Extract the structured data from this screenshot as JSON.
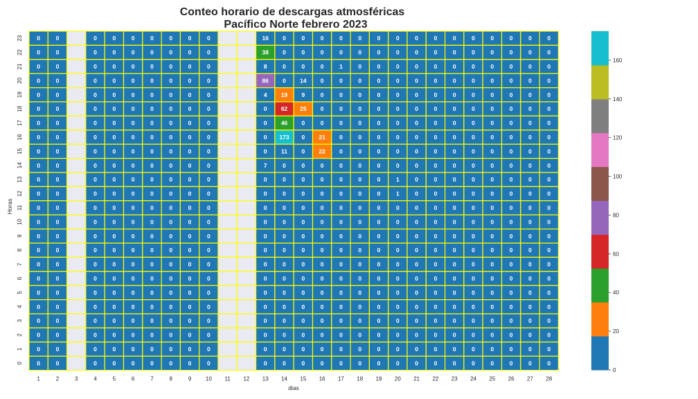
{
  "chart_data": {
    "type": "heatmap",
    "title": "Conteo horario de descargas atmosféricas",
    "subtitle": "Pacífico Norte febrero 2023",
    "xlabel": "dias",
    "ylabel": "Horas",
    "x": [
      1,
      2,
      3,
      4,
      5,
      6,
      7,
      8,
      9,
      10,
      11,
      12,
      13,
      14,
      15,
      16,
      17,
      18,
      19,
      20,
      21,
      22,
      23,
      24,
      25,
      26,
      27,
      28
    ],
    "y": [
      23,
      22,
      21,
      20,
      19,
      18,
      17,
      16,
      15,
      14,
      13,
      12,
      11,
      10,
      9,
      8,
      7,
      6,
      5,
      4,
      3,
      2,
      1,
      0
    ],
    "missing_days": [
      3,
      11,
      12
    ],
    "values": [
      [
        0,
        0,
        null,
        0,
        0,
        0,
        0,
        0,
        0,
        0,
        null,
        null,
        16,
        0,
        0,
        0,
        0,
        0,
        0,
        0,
        0,
        0,
        0,
        0,
        0,
        0,
        0,
        0
      ],
      [
        0,
        0,
        null,
        0,
        0,
        0,
        0,
        0,
        0,
        0,
        null,
        null,
        38,
        0,
        0,
        0,
        0,
        0,
        0,
        0,
        0,
        0,
        0,
        0,
        0,
        0,
        0,
        0
      ],
      [
        0,
        0,
        null,
        0,
        0,
        0,
        0,
        0,
        0,
        0,
        null,
        null,
        8,
        0,
        0,
        0,
        1,
        0,
        0,
        0,
        0,
        0,
        0,
        0,
        0,
        0,
        0,
        0
      ],
      [
        0,
        0,
        null,
        0,
        0,
        0,
        0,
        0,
        0,
        0,
        null,
        null,
        86,
        0,
        14,
        0,
        0,
        0,
        0,
        0,
        0,
        0,
        0,
        0,
        0,
        0,
        0,
        0
      ],
      [
        0,
        0,
        null,
        0,
        0,
        0,
        0,
        0,
        0,
        0,
        null,
        null,
        4,
        19,
        9,
        0,
        0,
        0,
        0,
        0,
        0,
        0,
        0,
        0,
        0,
        0,
        0,
        0
      ],
      [
        0,
        0,
        null,
        0,
        0,
        0,
        0,
        0,
        0,
        0,
        null,
        null,
        0,
        62,
        25,
        0,
        0,
        0,
        0,
        0,
        0,
        0,
        0,
        0,
        0,
        0,
        0,
        0
      ],
      [
        0,
        0,
        null,
        0,
        0,
        0,
        0,
        0,
        0,
        0,
        null,
        null,
        0,
        46,
        0,
        0,
        0,
        0,
        0,
        0,
        0,
        0,
        0,
        0,
        0,
        0,
        0,
        0
      ],
      [
        0,
        0,
        null,
        0,
        0,
        0,
        0,
        0,
        0,
        0,
        null,
        null,
        0,
        173,
        0,
        21,
        0,
        0,
        0,
        0,
        0,
        0,
        0,
        0,
        0,
        0,
        0,
        0
      ],
      [
        0,
        0,
        null,
        0,
        0,
        0,
        0,
        0,
        0,
        0,
        null,
        null,
        0,
        11,
        0,
        22,
        0,
        0,
        0,
        0,
        0,
        0,
        0,
        0,
        0,
        0,
        0,
        0
      ],
      [
        0,
        0,
        null,
        0,
        0,
        0,
        0,
        0,
        0,
        0,
        null,
        null,
        7,
        0,
        0,
        0,
        0,
        0,
        0,
        0,
        0,
        0,
        0,
        0,
        0,
        0,
        0,
        0
      ],
      [
        0,
        0,
        null,
        0,
        0,
        0,
        0,
        0,
        0,
        0,
        null,
        null,
        0,
        0,
        0,
        0,
        0,
        0,
        0,
        1,
        0,
        0,
        0,
        0,
        0,
        0,
        0,
        0
      ],
      [
        0,
        0,
        null,
        0,
        0,
        0,
        0,
        0,
        0,
        0,
        null,
        null,
        0,
        0,
        0,
        0,
        0,
        0,
        0,
        1,
        0,
        0,
        0,
        0,
        0,
        0,
        0,
        0
      ],
      [
        0,
        0,
        null,
        0,
        0,
        0,
        0,
        0,
        0,
        0,
        null,
        null,
        0,
        0,
        0,
        0,
        0,
        0,
        0,
        0,
        0,
        0,
        0,
        0,
        0,
        0,
        0,
        0
      ],
      [
        0,
        0,
        null,
        0,
        0,
        0,
        0,
        0,
        0,
        0,
        null,
        null,
        0,
        0,
        0,
        0,
        0,
        0,
        0,
        0,
        0,
        0,
        0,
        0,
        0,
        0,
        0,
        0
      ],
      [
        0,
        0,
        null,
        0,
        0,
        0,
        0,
        0,
        0,
        0,
        null,
        null,
        0,
        0,
        0,
        0,
        0,
        0,
        0,
        0,
        0,
        0,
        0,
        0,
        0,
        0,
        0,
        0
      ],
      [
        0,
        0,
        null,
        0,
        0,
        0,
        0,
        0,
        0,
        0,
        null,
        null,
        0,
        0,
        0,
        0,
        0,
        0,
        0,
        0,
        0,
        0,
        0,
        0,
        0,
        0,
        0,
        0
      ],
      [
        0,
        0,
        null,
        0,
        0,
        0,
        0,
        0,
        0,
        0,
        null,
        null,
        0,
        0,
        0,
        0,
        0,
        0,
        0,
        0,
        0,
        0,
        0,
        0,
        0,
        0,
        0,
        0
      ],
      [
        0,
        0,
        null,
        0,
        0,
        0,
        0,
        0,
        0,
        0,
        null,
        null,
        0,
        0,
        0,
        0,
        0,
        0,
        0,
        0,
        0,
        0,
        0,
        0,
        0,
        0,
        0,
        0
      ],
      [
        0,
        0,
        null,
        0,
        0,
        0,
        0,
        0,
        0,
        0,
        null,
        null,
        0,
        0,
        0,
        0,
        0,
        0,
        0,
        0,
        0,
        0,
        0,
        0,
        0,
        0,
        0,
        0
      ],
      [
        0,
        0,
        null,
        0,
        0,
        0,
        0,
        0,
        0,
        0,
        null,
        null,
        0,
        0,
        0,
        0,
        0,
        0,
        0,
        0,
        0,
        0,
        0,
        0,
        0,
        0,
        0,
        0
      ],
      [
        0,
        0,
        null,
        0,
        0,
        0,
        0,
        0,
        0,
        0,
        null,
        null,
        0,
        0,
        0,
        0,
        0,
        0,
        0,
        0,
        0,
        0,
        0,
        0,
        0,
        0,
        0,
        0
      ],
      [
        0,
        0,
        null,
        0,
        0,
        0,
        0,
        0,
        0,
        0,
        null,
        null,
        0,
        0,
        0,
        0,
        0,
        0,
        0,
        0,
        0,
        0,
        0,
        0,
        0,
        0,
        0,
        0
      ],
      [
        0,
        0,
        null,
        0,
        0,
        0,
        0,
        0,
        0,
        0,
        null,
        null,
        0,
        0,
        0,
        0,
        0,
        0,
        0,
        0,
        0,
        0,
        0,
        0,
        0,
        0,
        0,
        0
      ],
      [
        0,
        0,
        null,
        0,
        0,
        0,
        0,
        0,
        0,
        0,
        null,
        null,
        0,
        0,
        0,
        0,
        0,
        0,
        0,
        0,
        0,
        0,
        0,
        0,
        0,
        0,
        0,
        0
      ]
    ],
    "colorbar": {
      "range": [
        0,
        175
      ],
      "ticks": [
        0,
        20,
        40,
        60,
        80,
        100,
        120,
        140,
        160
      ],
      "colors": [
        "#1f77b4",
        "#ff7f0e",
        "#2ca02c",
        "#d62728",
        "#9467bd",
        "#8c564b",
        "#e377c2",
        "#7f7f7f",
        "#bcbd22",
        "#17becf"
      ]
    },
    "cell_border_color": "#ffff00",
    "missing_color": "#eaeaf2",
    "grid": false
  }
}
